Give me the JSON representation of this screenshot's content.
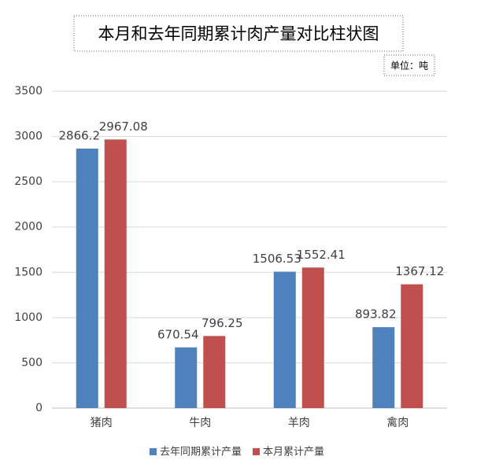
{
  "chart_data": {
    "type": "bar",
    "title": "本月和去年同期累计肉产量对比柱状图",
    "unit": "单位：吨",
    "categories": [
      "猪肉",
      "牛肉",
      "羊肉",
      "禽肉"
    ],
    "series": [
      {
        "name": "去年同期累计产量",
        "color": "#4f81bd",
        "values": [
          2866.2,
          670.54,
          1506.53,
          893.82
        ]
      },
      {
        "name": "本月累计产量",
        "color": "#c0504d",
        "values": [
          2967.08,
          796.25,
          1552.41,
          1367.12
        ]
      }
    ],
    "ylim": [
      0,
      3500
    ],
    "yticks": [
      0,
      500,
      1000,
      1500,
      2000,
      2500,
      3000,
      3500
    ],
    "grid": true,
    "legend": "bottom"
  }
}
